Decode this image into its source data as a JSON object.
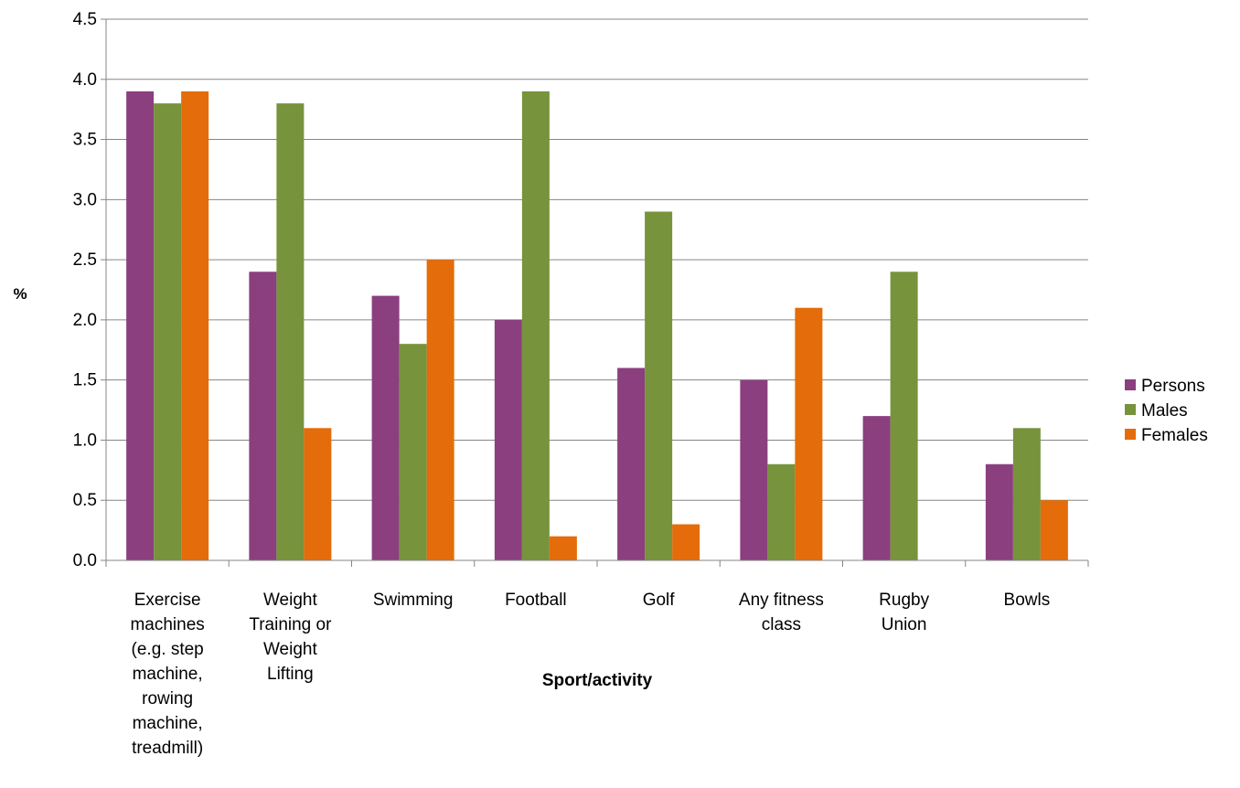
{
  "chart_data": {
    "type": "bar",
    "title": "",
    "xlabel": "Sport/activity",
    "ylabel": "%",
    "ylim": [
      0,
      4.5
    ],
    "ytick_step": 0.5,
    "yticks": [
      "0.0",
      "0.5",
      "1.0",
      "1.5",
      "2.0",
      "2.5",
      "3.0",
      "3.5",
      "4.0",
      "4.5"
    ],
    "grid": true,
    "legend_position": "right",
    "categories": [
      "Exercise machines (e.g. step machine, rowing machine, treadmill)",
      "Weight Training or Weight Lifting",
      "Swimming",
      "Football",
      "Golf",
      "Any fitness class",
      "Rugby Union",
      "Bowls"
    ],
    "category_label_lines": [
      [
        "Exercise",
        "machines",
        "(e.g. step",
        "machine,",
        "rowing",
        "machine,",
        "treadmill)"
      ],
      [
        "Weight",
        "Training or",
        "Weight",
        "Lifting"
      ],
      [
        "Swimming"
      ],
      [
        "Football"
      ],
      [
        "Golf"
      ],
      [
        "Any fitness",
        "class"
      ],
      [
        "Rugby",
        "Union"
      ],
      [
        "Bowls"
      ]
    ],
    "series": [
      {
        "name": "Persons",
        "color": "#8B3F7E",
        "values": [
          3.9,
          2.4,
          2.2,
          2.0,
          1.6,
          1.5,
          1.2,
          0.8
        ]
      },
      {
        "name": "Males",
        "color": "#77933C",
        "values": [
          3.8,
          3.8,
          1.8,
          3.9,
          2.9,
          0.8,
          2.4,
          1.1
        ]
      },
      {
        "name": "Females",
        "color": "#E46C0A",
        "values": [
          3.9,
          1.1,
          2.5,
          0.2,
          0.3,
          2.1,
          0.0,
          0.5
        ]
      }
    ]
  }
}
